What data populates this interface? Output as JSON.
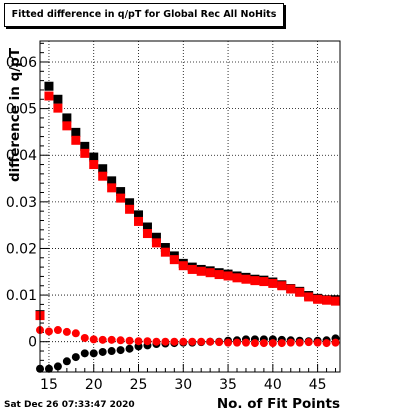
{
  "chart_data": {
    "type": "scatter",
    "title": "Fitted difference in q/pT  for Global Rec All NoHits",
    "xlabel": "No. of Fit Points",
    "ylabel": "difference in q/pT",
    "xlim": [
      14,
      47.5
    ],
    "ylim": [
      -0.0065,
      0.0645
    ],
    "x_ticks": [
      15,
      20,
      25,
      30,
      35,
      40,
      45
    ],
    "y_ticks": [
      0,
      0.01,
      0.02,
      0.03,
      0.04,
      0.05,
      0.06
    ],
    "y_tick_labels": [
      "0",
      "0.01",
      "0.02",
      "0.03",
      "0.04",
      "0.05",
      "0.06"
    ],
    "grid": true,
    "x": [
      14,
      15,
      16,
      17,
      18,
      19,
      20,
      21,
      22,
      23,
      24,
      25,
      26,
      27,
      28,
      29,
      30,
      31,
      32,
      33,
      34,
      35,
      36,
      37,
      38,
      39,
      40,
      41,
      42,
      43,
      44,
      45,
      46,
      47
    ],
    "series": [
      {
        "marker": "square",
        "color": "#000000",
        "values": [
          0.0058,
          0.0548,
          0.052,
          0.048,
          0.0449,
          0.0419,
          0.0396,
          0.0371,
          0.0345,
          0.0322,
          0.0298,
          0.0272,
          0.0246,
          0.0224,
          0.0202,
          0.0184,
          0.0168,
          0.016,
          0.0155,
          0.0152,
          0.0148,
          0.0145,
          0.0141,
          0.0138,
          0.0134,
          0.0132,
          0.0128,
          0.0122,
          0.0114,
          0.0108,
          0.0099,
          0.0093,
          0.009,
          0.009
        ]
      },
      {
        "marker": "square",
        "color": "#ff0000",
        "values": [
          0.0056,
          0.0527,
          0.0501,
          0.0463,
          0.0432,
          0.0404,
          0.038,
          0.0355,
          0.033,
          0.0308,
          0.0284,
          0.0258,
          0.0232,
          0.0212,
          0.0192,
          0.0176,
          0.0163,
          0.0155,
          0.0151,
          0.0148,
          0.0144,
          0.0141,
          0.0137,
          0.0134,
          0.0131,
          0.0129,
          0.0125,
          0.012,
          0.0113,
          0.0106,
          0.0096,
          0.0091,
          0.0089,
          0.0087
        ]
      },
      {
        "marker": "circle",
        "color": "#000000",
        "values": [
          -0.0058,
          -0.0058,
          -0.0053,
          -0.0042,
          -0.0033,
          -0.0025,
          -0.0025,
          -0.0022,
          -0.002,
          -0.0018,
          -0.0015,
          -0.001,
          -0.0008,
          -0.0005,
          -0.0004,
          -0.0003,
          -0.0002,
          -0.0002,
          -0.0001,
          0.0,
          0.0,
          0.0002,
          0.0003,
          0.0005,
          0.0005,
          0.0005,
          0.0005,
          0.0004,
          0.0003,
          0.0002,
          0.0001,
          0.0002,
          0.0003,
          0.0007
        ]
      },
      {
        "marker": "circle",
        "color": "#ff0000",
        "values": [
          0.0025,
          0.0022,
          0.0025,
          0.0021,
          0.0018,
          0.0008,
          0.0005,
          0.0004,
          0.0004,
          0.0003,
          0.0002,
          0.0001,
          0.0001,
          0.0,
          0.0,
          0.0,
          0.0,
          0.0,
          0.0,
          0.0,
          -0.0001,
          -0.0002,
          -0.0002,
          -0.0002,
          -0.0003,
          -0.0003,
          -0.0003,
          -0.0003,
          -0.0002,
          -0.0002,
          -0.0001,
          -0.0002,
          -0.0003,
          -0.0002
        ]
      }
    ]
  },
  "footer": {
    "timestamp": "Sat Dec 26 07:33:47 2020"
  }
}
